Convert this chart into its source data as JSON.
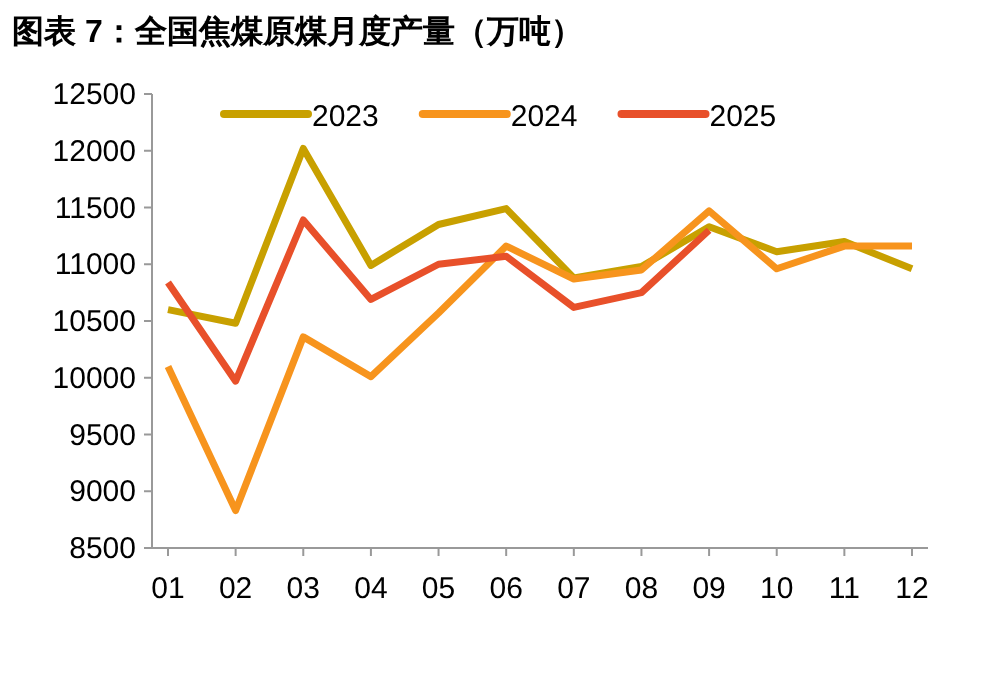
{
  "chart_data": {
    "type": "line",
    "title": "图表 7：全国焦煤原煤月度产量（万吨）",
    "categories": [
      "01",
      "02",
      "03",
      "04",
      "05",
      "06",
      "07",
      "08",
      "09",
      "10",
      "11",
      "12"
    ],
    "series": [
      {
        "name": "2023",
        "color": "#c8a000",
        "values": [
          10600,
          10480,
          12020,
          10990,
          11350,
          11490,
          10880,
          10980,
          11330,
          11110,
          11200,
          10960
        ]
      },
      {
        "name": "2024",
        "color": "#f7941d",
        "values": [
          10100,
          8830,
          10360,
          10010,
          10570,
          11160,
          10870,
          10950,
          11470,
          10960,
          11160,
          11160
        ]
      },
      {
        "name": "2025",
        "color": "#e8502a",
        "values": [
          10840,
          9970,
          11390,
          10690,
          11000,
          11070,
          10620,
          10750,
          11300,
          null,
          null,
          null
        ]
      }
    ],
    "ylim": [
      8500,
      12500
    ],
    "yticks": [
      8500,
      9000,
      9500,
      10000,
      10500,
      11000,
      11500,
      12000,
      12500
    ],
    "legend": "top"
  }
}
